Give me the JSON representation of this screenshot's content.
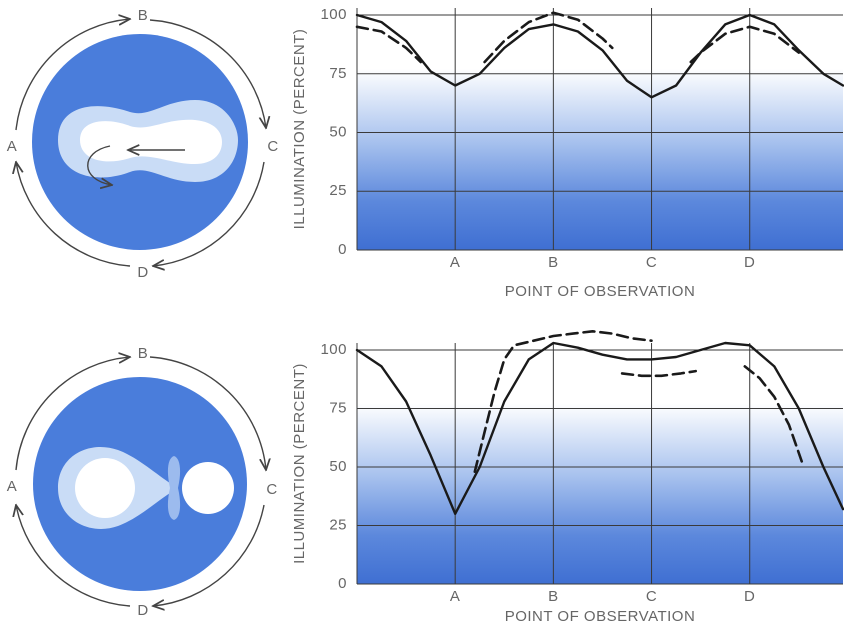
{
  "diagrams": [
    {
      "labels": [
        "A",
        "B",
        "C",
        "D"
      ]
    },
    {
      "labels": [
        "A",
        "B",
        "C",
        "D"
      ]
    }
  ],
  "chart_data": [
    {
      "type": "line",
      "ylabel": "ILLUMINATION (PERCENT)",
      "xlabel": "POINT OF OBSERVATION",
      "xlim": [
        0,
        4.95
      ],
      "ylim": [
        0,
        103
      ],
      "xticks": [
        {
          "value": 1,
          "label": "A"
        },
        {
          "value": 2,
          "label": "B"
        },
        {
          "value": 3,
          "label": "C"
        },
        {
          "value": 4,
          "label": "D"
        }
      ],
      "yticks": [
        0,
        25,
        50,
        75,
        100
      ],
      "grid": true,
      "series": [
        {
          "style": "solid",
          "color": "#1a1a1a",
          "x": [
            0,
            0.25,
            0.5,
            0.75,
            1,
            1.25,
            1.5,
            1.75,
            2,
            2.25,
            2.5,
            2.75,
            3,
            3.25,
            3.5,
            3.75,
            4,
            4.25,
            4.5,
            4.75,
            4.95
          ],
          "values": [
            100,
            97,
            89,
            76,
            70,
            75,
            86,
            94,
            96,
            93,
            85,
            72,
            65,
            70,
            84,
            96,
            100,
            96,
            85,
            75,
            70
          ]
        },
        {
          "style": "dashed",
          "color": "#1a1a1a",
          "x": [
            0,
            0.25,
            0.5,
            0.65
          ],
          "values": [
            95,
            93,
            86,
            80
          ]
        },
        {
          "style": "dashed",
          "color": "#1a1a1a",
          "x": [
            1.3,
            1.5,
            1.75,
            2,
            2.25,
            2.5,
            2.6
          ],
          "values": [
            80,
            89,
            97,
            101,
            98,
            90,
            86
          ]
        },
        {
          "style": "dashed",
          "color": "#1a1a1a",
          "x": [
            3.4,
            3.5,
            3.75,
            4,
            4.25,
            4.5
          ],
          "values": [
            80,
            84,
            92,
            95,
            92,
            84
          ]
        }
      ]
    },
    {
      "type": "line",
      "ylabel": "ILLUMINATION (PERCENT)",
      "xlabel": "POINT OF OBSERVATION",
      "xlim": [
        0,
        4.95
      ],
      "ylim": [
        0,
        103
      ],
      "xticks": [
        {
          "value": 1,
          "label": "A"
        },
        {
          "value": 2,
          "label": "B"
        },
        {
          "value": 3,
          "label": "C"
        },
        {
          "value": 4,
          "label": "D"
        }
      ],
      "yticks": [
        0,
        25,
        50,
        75,
        100
      ],
      "grid": true,
      "series": [
        {
          "style": "solid",
          "color": "#1a1a1a",
          "x": [
            0,
            0.25,
            0.5,
            0.75,
            1,
            1.25,
            1.5,
            1.75,
            2,
            2.25,
            2.5,
            2.75,
            3,
            3.25,
            3.5,
            3.75,
            4,
            4.25,
            4.5,
            4.75,
            4.95
          ],
          "values": [
            100,
            93,
            78,
            55,
            30,
            50,
            78,
            96,
            103,
            101,
            98,
            96,
            96,
            97,
            100,
            103,
            102,
            93,
            75,
            50,
            32
          ]
        },
        {
          "style": "dashed",
          "color": "#1a1a1a",
          "x": [
            1.2,
            1.3,
            1.4,
            1.5,
            1.6,
            1.8,
            2,
            2.2,
            2.4,
            2.6,
            2.8,
            3.0
          ],
          "values": [
            48,
            65,
            82,
            96,
            102,
            104,
            106,
            107,
            108,
            107,
            105,
            104
          ]
        },
        {
          "style": "dashed",
          "color": "#1a1a1a",
          "x": [
            2.7,
            2.9,
            3.1,
            3.3,
            3.45
          ],
          "values": [
            90,
            89,
            89,
            90,
            91
          ]
        },
        {
          "style": "dashed",
          "color": "#1a1a1a",
          "x": [
            3.95,
            4.1,
            4.25,
            4.4,
            4.55
          ],
          "values": [
            93,
            88,
            80,
            68,
            50
          ]
        }
      ]
    }
  ]
}
